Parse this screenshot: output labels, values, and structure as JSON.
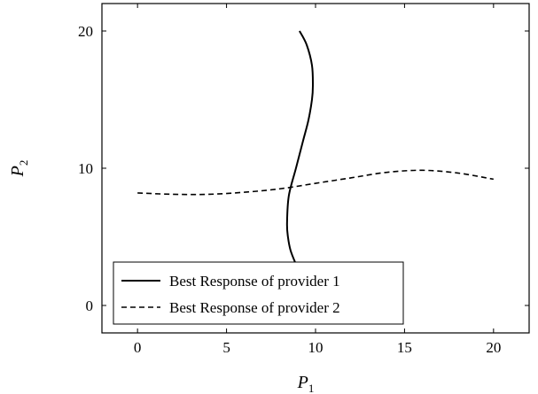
{
  "chart_data": {
    "type": "line",
    "title": "",
    "xlabel": {
      "main": "P",
      "sub": "1"
    },
    "ylabel": {
      "main": "P",
      "sub": "2"
    },
    "xlim": [
      -2,
      22
    ],
    "ylim": [
      -2,
      22
    ],
    "xticks": [
      0,
      5,
      10,
      15,
      20
    ],
    "yticks": [
      0,
      10,
      20
    ],
    "grid": false,
    "legend_position": "bottom-left",
    "series": [
      {
        "name": "Best Response of provider 1",
        "color": "#000000",
        "line_style": "solid",
        "x": [
          9.1,
          9.5,
          9.8,
          9.85,
          9.8,
          9.6,
          9.3,
          8.9,
          8.5,
          8.4,
          8.45,
          8.6,
          8.9
        ],
        "y": [
          20,
          19,
          17.5,
          16,
          15,
          13.5,
          12,
          10,
          8,
          6,
          5,
          4,
          3
        ]
      },
      {
        "name": "Best Response of provider 2",
        "color": "#000000",
        "line_style": "dashed",
        "x": [
          0,
          2,
          4,
          6,
          8,
          10,
          12,
          14,
          16,
          18,
          20
        ],
        "y": [
          8.2,
          8.1,
          8.1,
          8.25,
          8.5,
          8.9,
          9.3,
          9.7,
          9.85,
          9.65,
          9.2
        ]
      }
    ]
  }
}
